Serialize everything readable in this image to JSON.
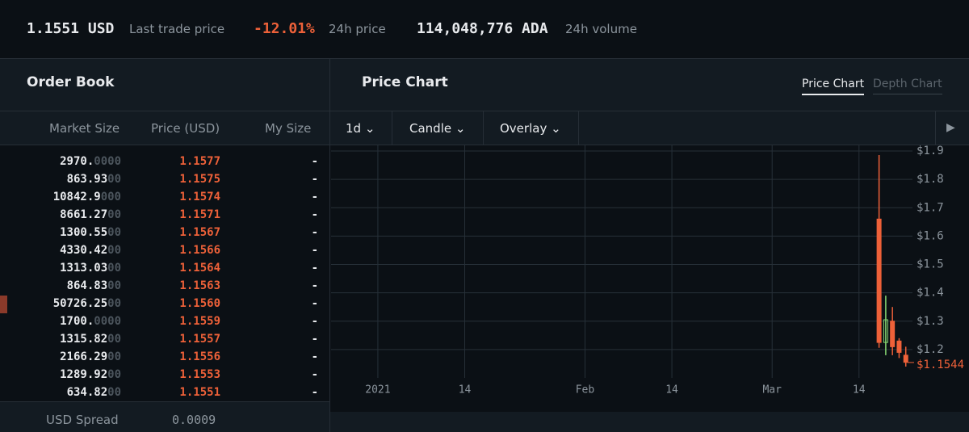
{
  "header": {
    "stats": [
      {
        "value": "1.1551 USD",
        "label": "Last trade price"
      },
      {
        "value": "-12.01%",
        "label": "24h price"
      },
      {
        "value": "114,048,776 ADA",
        "label": "24h volume"
      }
    ]
  },
  "order_book": {
    "title": "Order Book",
    "columns": [
      "Market Size",
      "Price (USD)",
      "My Size"
    ],
    "rows": [
      [
        "2970.",
        "0000",
        "1.1577",
        "-"
      ],
      [
        "863.93",
        "00",
        "1.1575",
        "-"
      ],
      [
        "10842.9",
        "000",
        "1.1574",
        "-"
      ],
      [
        "8661.27",
        "00",
        "1.1571",
        "-"
      ],
      [
        "1300.55",
        "00",
        "1.1567",
        "-"
      ],
      [
        "4330.42",
        "00",
        "1.1566",
        "-"
      ],
      [
        "1313.03",
        "00",
        "1.1564",
        "-"
      ],
      [
        "864.83",
        "00",
        "1.1563",
        "-"
      ],
      [
        "50726.25",
        "00",
        "1.1560",
        "-"
      ],
      [
        "1700.",
        "0000",
        "1.1559",
        "-"
      ],
      [
        "1315.82",
        "00",
        "1.1557",
        "-"
      ],
      [
        "2166.29",
        "00",
        "1.1556",
        "-"
      ],
      [
        "1289.92",
        "00",
        "1.1553",
        "-"
      ],
      [
        "634.82",
        "00",
        "1.1551",
        "-"
      ]
    ],
    "spread_label": "USD Spread",
    "spread": "0.0009"
  },
  "price_chart": {
    "title": "Price Chart",
    "tabs": [
      "Price Chart",
      "Depth Chart"
    ],
    "controls": [
      "1d",
      "Candle",
      "Overlay"
    ]
  },
  "chart_data": {
    "type": "candlestick",
    "x": [
      "2021-03-17",
      "2021-03-18",
      "2021-03-19",
      "2021-03-20",
      "2021-03-21"
    ],
    "open": [
      1.66,
      1.225,
      1.3,
      1.23,
      1.18
    ],
    "high": [
      1.886,
      1.39,
      1.35,
      1.24,
      1.21
    ],
    "low": [
      1.206,
      1.18,
      1.18,
      1.17,
      1.14
    ],
    "close": [
      1.225,
      1.305,
      1.21,
      1.19,
      1.155
    ],
    "up_color": "#86d873",
    "down_color": "#ee6139",
    "xlim": [
      "2020-12-25",
      "2021-03-22"
    ],
    "xticks": [
      {
        "value": "2021-01-01",
        "label": "2021"
      },
      {
        "value": "2021-01-14",
        "label": "14"
      },
      {
        "value": "2021-02-01",
        "label": "Feb"
      },
      {
        "value": "2021-02-14",
        "label": "14"
      },
      {
        "value": "2021-03-01",
        "label": "Mar"
      },
      {
        "value": "2021-03-14",
        "label": "14"
      }
    ],
    "ylim": [
      1.1,
      1.92
    ],
    "yticks": [
      {
        "value": 1.2,
        "label": "$1.2"
      },
      {
        "value": 1.3,
        "label": "$1.3"
      },
      {
        "value": 1.4,
        "label": "$1.4"
      },
      {
        "value": 1.5,
        "label": "$1.5"
      },
      {
        "value": 1.6,
        "label": "$1.6"
      },
      {
        "value": 1.7,
        "label": "$1.7"
      },
      {
        "value": 1.8,
        "label": "$1.8"
      },
      {
        "value": 1.9,
        "label": "$1.9"
      }
    ],
    "last_price": {
      "value": 1.1544,
      "label": "$1.1544"
    },
    "grid": true
  }
}
